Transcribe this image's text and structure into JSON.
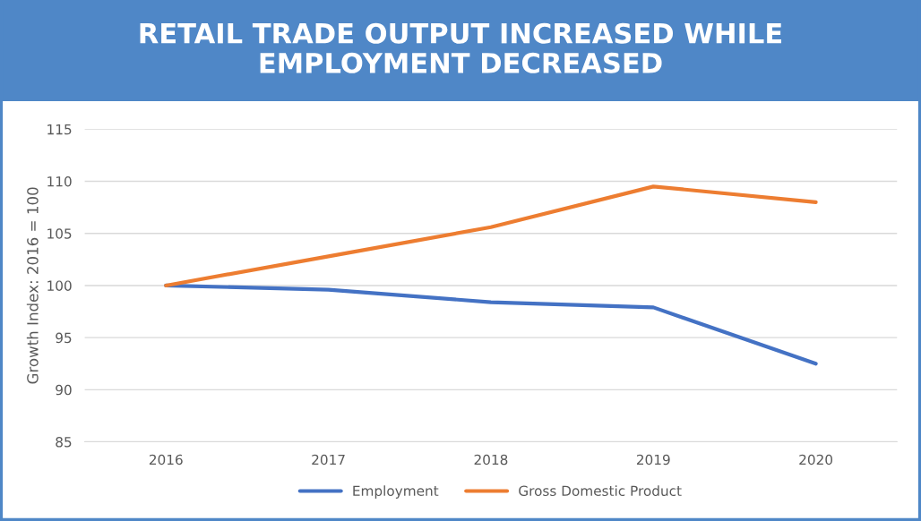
{
  "chart_data": {
    "type": "line",
    "title": "RETAIL TRADE OUTPUT INCREASED WHILE\nEMPLOYMENT DECREASED",
    "ylabel": "Growth Index: 2016 = 100",
    "categories": [
      "2016",
      "2017",
      "2018",
      "2019",
      "2020"
    ],
    "series": [
      {
        "name": "Employment",
        "color": "#4472c4",
        "values": [
          100,
          99.6,
          98.4,
          97.9,
          92.5
        ]
      },
      {
        "name": "Gross Domestic Product",
        "color": "#ed7d31",
        "values": [
          100,
          102.8,
          105.6,
          109.5,
          108.0
        ]
      }
    ],
    "ylim": [
      85,
      115
    ],
    "yticks": [
      85,
      90,
      95,
      100,
      105,
      110,
      115
    ],
    "grid": "y",
    "legend": "bottom",
    "marker": "none",
    "line_style": "solid"
  }
}
